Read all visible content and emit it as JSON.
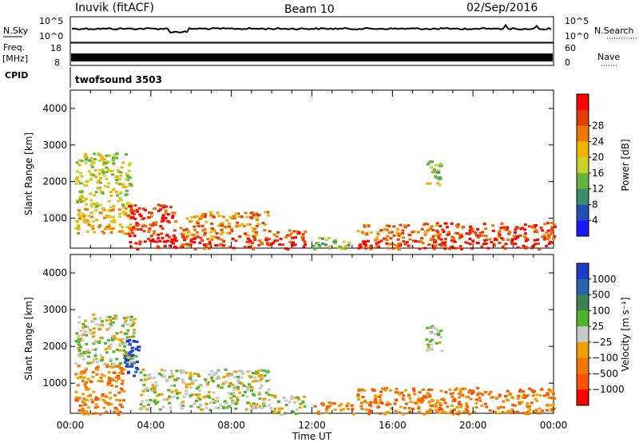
{
  "header": {
    "station": "Inuvik (fitACF)",
    "beam": "Beam 10",
    "date": "02/Sep/2016"
  },
  "sidepanel": {
    "nsky": "N.Sky",
    "nsky_ticks": [
      "10^5",
      "10^0"
    ],
    "nsearch": "N.Search",
    "nsearch_ticks": [
      "10^5",
      "10^0"
    ],
    "freq_label": "Freq.",
    "freq_unit": "[MHz]",
    "freq_ticks": [
      "18",
      "8"
    ],
    "nave": "Nave",
    "nave_ticks": [
      "60",
      "0"
    ],
    "cpid": "CPID",
    "cpid_value": "twofsound 3503"
  },
  "chart_data": [
    {
      "type": "heatmap",
      "panel": "power",
      "ylabel": "Slant Range [km]",
      "yticks": [
        "1000",
        "2000",
        "3000",
        "4000"
      ],
      "ylim": [
        180,
        4500
      ],
      "xlim_hours": [
        0,
        24
      ],
      "colorbar_label": "Power [dB]",
      "colorbar_ticks": [
        "4",
        "8",
        "12",
        "16",
        "20",
        "24",
        "28"
      ],
      "colors": [
        "#1a1aff",
        "#2050b4",
        "#3c8c6e",
        "#64b43c",
        "#c8d228",
        "#f0b400",
        "#f07800",
        "#e63c00",
        "#ff0000"
      ],
      "regions": [
        {
          "t": [
            0.2,
            3.0
          ],
          "r": [
            600,
            2800
          ],
          "level": 4
        },
        {
          "t": [
            2.8,
            5.2
          ],
          "r": [
            180,
            1400
          ],
          "level": 7
        },
        {
          "t": [
            5.4,
            9.8
          ],
          "r": [
            180,
            1200
          ],
          "level": 6
        },
        {
          "t": [
            9.8,
            11.6
          ],
          "r": [
            180,
            700
          ],
          "level": 7
        },
        {
          "t": [
            12.0,
            14.0
          ],
          "r": [
            180,
            500
          ],
          "level": 3
        },
        {
          "t": [
            14.2,
            18.2
          ],
          "r": [
            180,
            900
          ],
          "level": 6
        },
        {
          "t": [
            18.2,
            24.0
          ],
          "r": [
            180,
            900
          ],
          "level": 7
        },
        {
          "t": [
            17.6,
            18.4
          ],
          "r": [
            1900,
            2600
          ],
          "level": 3
        }
      ]
    },
    {
      "type": "heatmap",
      "panel": "velocity",
      "ylabel": "Slant Range [km]",
      "yticks": [
        "1000",
        "2000",
        "3000",
        "4000"
      ],
      "ylim": [
        180,
        4500
      ],
      "xlim_hours": [
        0,
        24
      ],
      "xticks": [
        "00:00",
        "04:00",
        "08:00",
        "12:00",
        "16:00",
        "20:00",
        "00:00"
      ],
      "xlabel": "Time UT",
      "colorbar_label": "Velocity [m s⁻¹]",
      "colorbar_ticks": [
        "1000",
        "500",
        "100",
        "25",
        "−25",
        "−100",
        "−500",
        "−1000"
      ],
      "colors": [
        "#1e3cc8",
        "#2a64aa",
        "#3c8250",
        "#50b428",
        "#c8c8c8",
        "#f0a000",
        "#f07800",
        "#ff5000",
        "#ff0000"
      ],
      "regions": [
        {
          "t": [
            0.2,
            3.2
          ],
          "r": [
            1500,
            2900
          ],
          "level": 4
        },
        {
          "t": [
            0.2,
            2.6
          ],
          "r": [
            180,
            1500
          ],
          "level": 6
        },
        {
          "t": [
            2.6,
            3.4
          ],
          "r": [
            1200,
            2200
          ],
          "level": 0
        },
        {
          "t": [
            3.4,
            9.8
          ],
          "r": [
            300,
            1400
          ],
          "level": 4
        },
        {
          "t": [
            9.8,
            11.6
          ],
          "r": [
            180,
            700
          ],
          "level": 4
        },
        {
          "t": [
            12.0,
            14.0
          ],
          "r": [
            180,
            500
          ],
          "level": 6
        },
        {
          "t": [
            14.2,
            18.2
          ],
          "r": [
            180,
            900
          ],
          "level": 6
        },
        {
          "t": [
            18.2,
            24.0
          ],
          "r": [
            180,
            900
          ],
          "level": 6
        },
        {
          "t": [
            17.6,
            18.4
          ],
          "r": [
            1900,
            2600
          ],
          "level": 4
        }
      ]
    }
  ]
}
